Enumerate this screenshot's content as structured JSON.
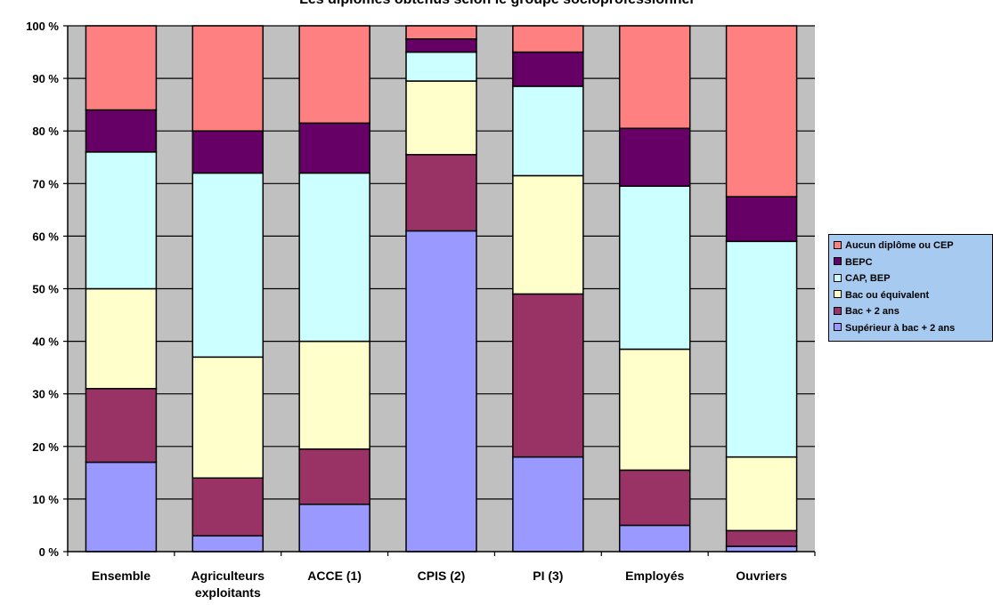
{
  "chart_data": {
    "type": "bar",
    "stacked": true,
    "title": "Les diplômes obtenus selon le groupe socioprofessionnel",
    "categories": [
      "Ensemble",
      "Agriculteurs exploitants",
      "ACCE (1)",
      "CPIS (2)",
      "PI (3)",
      "Employés",
      "Ouvriers"
    ],
    "category_lines": [
      [
        "Ensemble"
      ],
      [
        "Agriculteurs",
        "exploitants"
      ],
      [
        "ACCE (1)"
      ],
      [
        "CPIS (2)"
      ],
      [
        "PI (3)"
      ],
      [
        "Employés"
      ],
      [
        "Ouvriers"
      ]
    ],
    "ylim": [
      0,
      100
    ],
    "yticks": [
      0,
      10,
      20,
      30,
      40,
      50,
      60,
      70,
      80,
      90,
      100
    ],
    "ytick_labels": [
      "0 %",
      "10 %",
      "20 %",
      "30 %",
      "40 %",
      "50 %",
      "60 %",
      "70 %",
      "80 %",
      "90 %",
      "100 %"
    ],
    "grid": true,
    "legend_position": "right",
    "series": [
      {
        "name": "Supérieur à bac + 2 ans",
        "color": "#9999ff",
        "values": [
          17,
          3,
          9,
          61,
          18,
          5,
          1
        ]
      },
      {
        "name": "Bac + 2 ans",
        "color": "#993366",
        "values": [
          14,
          11,
          10.5,
          14.5,
          31,
          10.5,
          3
        ]
      },
      {
        "name": "Bac ou équivalent",
        "color": "#ffffcc",
        "values": [
          19,
          23,
          20.5,
          14,
          22.5,
          23,
          14
        ]
      },
      {
        "name": "CAP, BEP",
        "color": "#ccffff",
        "values": [
          26,
          35,
          32,
          5.5,
          17,
          31,
          41
        ]
      },
      {
        "name": "BEPC",
        "color": "#660066",
        "values": [
          8,
          8,
          9.5,
          2.5,
          6.5,
          11,
          8.5
        ]
      },
      {
        "name": "Aucun diplôme ou CEP",
        "color": "#ff8080",
        "values": [
          16,
          20,
          18.5,
          2.5,
          5,
          19.5,
          32.5
        ]
      }
    ],
    "legend_order": [
      5,
      4,
      3,
      2,
      1,
      0
    ]
  }
}
